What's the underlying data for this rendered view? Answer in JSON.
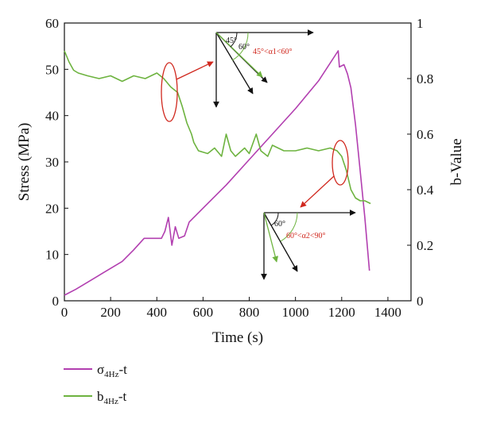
{
  "chart_data": {
    "type": "line",
    "xlabel": "Time (s)",
    "ylabel_left": "Stress (MPa)",
    "ylabel_right": "b-Value",
    "xlim": [
      0,
      1500
    ],
    "ylim_left": [
      0,
      60
    ],
    "ylim_right": [
      0,
      1
    ],
    "x_ticks": [
      0,
      200,
      400,
      600,
      800,
      1000,
      1200,
      1400
    ],
    "y_left_ticks": [
      0,
      10,
      20,
      30,
      40,
      50,
      60
    ],
    "y_right_ticks": [
      0,
      0.2,
      0.4,
      0.6,
      0.8,
      1
    ],
    "grid": false,
    "legend_position": "bottom-left",
    "series": [
      {
        "name": "σ4Hz-t",
        "name_main": "σ",
        "name_sub": "4Hz",
        "name_suffix": "-t",
        "axis": "left",
        "color": "#b23fb0",
        "points": [
          [
            0,
            1.2
          ],
          [
            50,
            2.5
          ],
          [
            100,
            4
          ],
          [
            150,
            5.5
          ],
          [
            200,
            7
          ],
          [
            250,
            8.5
          ],
          [
            300,
            11
          ],
          [
            345,
            13.5
          ],
          [
            420,
            13.5
          ],
          [
            435,
            15
          ],
          [
            450,
            18
          ],
          [
            465,
            12
          ],
          [
            480,
            16
          ],
          [
            495,
            13.5
          ],
          [
            520,
            14
          ],
          [
            540,
            17
          ],
          [
            600,
            20
          ],
          [
            700,
            25
          ],
          [
            800,
            30.5
          ],
          [
            900,
            36
          ],
          [
            1000,
            41.5
          ],
          [
            1100,
            47.5
          ],
          [
            1185,
            54
          ],
          [
            1190,
            50.5
          ],
          [
            1210,
            51
          ],
          [
            1225,
            49
          ],
          [
            1240,
            46
          ],
          [
            1260,
            38
          ],
          [
            1280,
            28
          ],
          [
            1300,
            18
          ],
          [
            1320,
            6.5
          ]
        ]
      },
      {
        "name": "b4Hz-t",
        "name_main": "b",
        "name_sub": "4Hz",
        "name_suffix": "-t",
        "axis": "right",
        "color": "#6db33f",
        "points": [
          [
            0,
            0.9
          ],
          [
            20,
            0.86
          ],
          [
            40,
            0.83
          ],
          [
            60,
            0.82
          ],
          [
            100,
            0.81
          ],
          [
            150,
            0.8
          ],
          [
            200,
            0.81
          ],
          [
            250,
            0.79
          ],
          [
            300,
            0.81
          ],
          [
            350,
            0.8
          ],
          [
            400,
            0.82
          ],
          [
            430,
            0.8
          ],
          [
            460,
            0.77
          ],
          [
            490,
            0.75
          ],
          [
            510,
            0.7
          ],
          [
            530,
            0.64
          ],
          [
            550,
            0.6
          ],
          [
            560,
            0.57
          ],
          [
            580,
            0.54
          ],
          [
            620,
            0.53
          ],
          [
            650,
            0.55
          ],
          [
            680,
            0.52
          ],
          [
            700,
            0.6
          ],
          [
            720,
            0.54
          ],
          [
            740,
            0.52
          ],
          [
            780,
            0.55
          ],
          [
            800,
            0.53
          ],
          [
            830,
            0.6
          ],
          [
            850,
            0.54
          ],
          [
            880,
            0.52
          ],
          [
            900,
            0.56
          ],
          [
            950,
            0.54
          ],
          [
            1000,
            0.54
          ],
          [
            1050,
            0.55
          ],
          [
            1100,
            0.54
          ],
          [
            1150,
            0.55
          ],
          [
            1180,
            0.54
          ],
          [
            1200,
            0.52
          ],
          [
            1220,
            0.47
          ],
          [
            1240,
            0.4
          ],
          [
            1260,
            0.37
          ],
          [
            1280,
            0.36
          ],
          [
            1300,
            0.36
          ],
          [
            1325,
            0.35
          ]
        ]
      }
    ],
    "annotations": {
      "top_angle_a": "45°",
      "top_angle_b": "60°",
      "top_range": "45°<α1<60°",
      "bottom_angle": "60°",
      "bottom_range": "60°<α2<90°"
    }
  }
}
